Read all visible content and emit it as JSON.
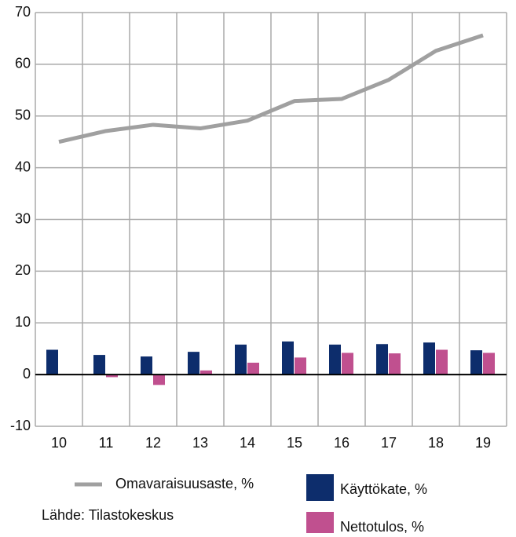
{
  "chart_data": {
    "type": "bar",
    "categories": [
      "10",
      "11",
      "12",
      "13",
      "14",
      "15",
      "16",
      "17",
      "18",
      "19"
    ],
    "series": [
      {
        "name": "Omavaraisuusaste, %",
        "type": "line",
        "color": "#a0a0a0",
        "values": [
          45,
          47.1,
          48.3,
          47.6,
          49.1,
          52.9,
          53.3,
          57,
          62.6,
          65.6
        ]
      },
      {
        "name": "Käyttökate, %",
        "type": "bar",
        "color": "#0d2d6c",
        "values": [
          4.8,
          3.8,
          3.5,
          4.4,
          5.8,
          6.4,
          5.8,
          5.9,
          6.2,
          4.7
        ]
      },
      {
        "name": "Nettotulos, %",
        "type": "bar",
        "color": "#c0508f",
        "values": [
          0,
          -0.5,
          -2,
          0.8,
          2.3,
          3.3,
          4.2,
          4.1,
          4.8,
          4.2
        ]
      }
    ],
    "ylim": [
      -10,
      70
    ],
    "yticks": [
      -10,
      0,
      10,
      20,
      30,
      40,
      50,
      60,
      70
    ],
    "grid": true,
    "source": "Lähde: Tilastokeskus"
  }
}
